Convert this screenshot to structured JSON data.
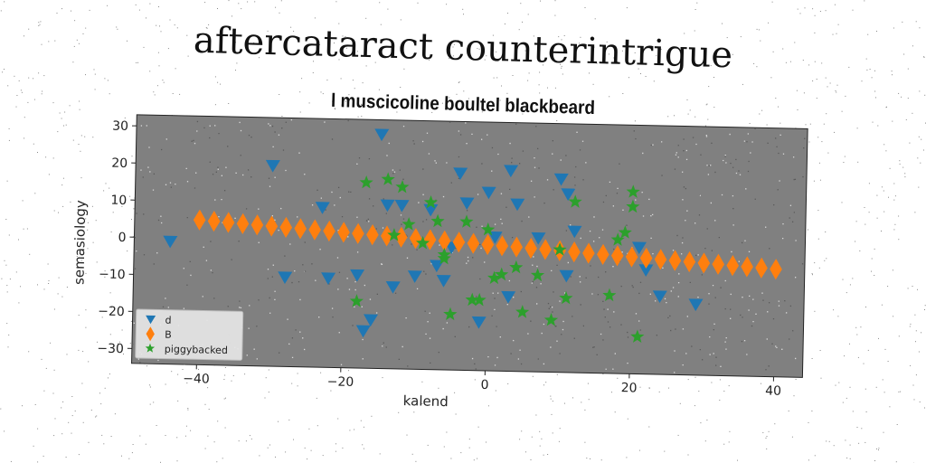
{
  "page_title": "aftercataract counterintrigue",
  "chart_data": {
    "type": "scatter",
    "title": "l muscicoline boultel blackbeard",
    "xlabel": "kalend",
    "ylabel": "semasiology",
    "xlim": [
      -49,
      44
    ],
    "ylim": [
      -34,
      33
    ],
    "xticks": [
      -40,
      -20,
      0,
      20,
      40
    ],
    "yticks": [
      30,
      20,
      10,
      0,
      -10,
      -20,
      -30
    ],
    "grid": false,
    "legend_position": "lower-left",
    "background_color": "#808080",
    "series": [
      {
        "name": "d",
        "marker": "triangle-down",
        "color": "#1f77b4",
        "x": [
          -44,
          -30,
          -28,
          -23,
          -22,
          -18,
          -17,
          -16,
          -15,
          -14,
          -13,
          -12,
          -10,
          -8,
          -7,
          -6,
          -5,
          -4,
          -3,
          -1,
          0,
          1,
          3,
          3,
          4,
          7,
          10,
          11,
          11,
          12,
          21,
          22,
          24,
          29
        ],
        "y": [
          -1,
          20,
          -10,
          9,
          -10,
          -9,
          -24,
          -21,
          29,
          10,
          -12,
          10,
          -9,
          9,
          -6,
          -10,
          -1,
          19,
          11,
          -21,
          14,
          2,
          -14,
          20,
          11,
          2,
          18,
          -8,
          14,
          4,
          0,
          -6,
          -13,
          -15
        ]
      },
      {
        "name": "B",
        "marker": "diamond",
        "color": "#ff7f0e",
        "x": [
          -40,
          -38,
          -36,
          -34,
          -32,
          -30,
          -28,
          -26,
          -24,
          -22,
          -20,
          -18,
          -16,
          -14,
          -12,
          -10,
          -8,
          -6,
          -4,
          -2,
          0,
          2,
          4,
          6,
          8,
          10,
          12,
          14,
          16,
          18,
          20,
          22,
          24,
          26,
          28,
          30,
          32,
          34,
          36,
          38,
          40
        ],
        "y": [
          5,
          4.75,
          4.5,
          4.25,
          4,
          3.75,
          3.5,
          3.25,
          3,
          2.75,
          2.5,
          2.25,
          2,
          1.75,
          1.5,
          1.25,
          1,
          0.75,
          0.5,
          0.25,
          0,
          -0.25,
          -0.5,
          -0.75,
          -1,
          -1.25,
          -1.5,
          -1.75,
          -2,
          -2.25,
          -2.5,
          -2.75,
          -3,
          -3.25,
          -3.5,
          -3.75,
          -4,
          -4.25,
          -4.5,
          -4.75,
          -5
        ]
      },
      {
        "name": "piggybacked",
        "marker": "star",
        "color": "#2ca02c",
        "x": [
          -18,
          -17,
          -14,
          -13,
          -12,
          -11,
          -9,
          -8,
          -7,
          -6,
          -6,
          -5,
          -3,
          -2,
          -1,
          0,
          1,
          2,
          4,
          5,
          7,
          9,
          10,
          11,
          12,
          17,
          18,
          19,
          20,
          20,
          21
        ],
        "y": [
          -16,
          16,
          17,
          2,
          15,
          5,
          0,
          11,
          6,
          -4,
          -3,
          -19,
          6,
          -15,
          -15,
          4,
          -9,
          -8,
          -6,
          -18,
          -8,
          -20,
          -1,
          -14,
          12,
          -13,
          2,
          4,
          15,
          11,
          -24
        ]
      }
    ]
  }
}
